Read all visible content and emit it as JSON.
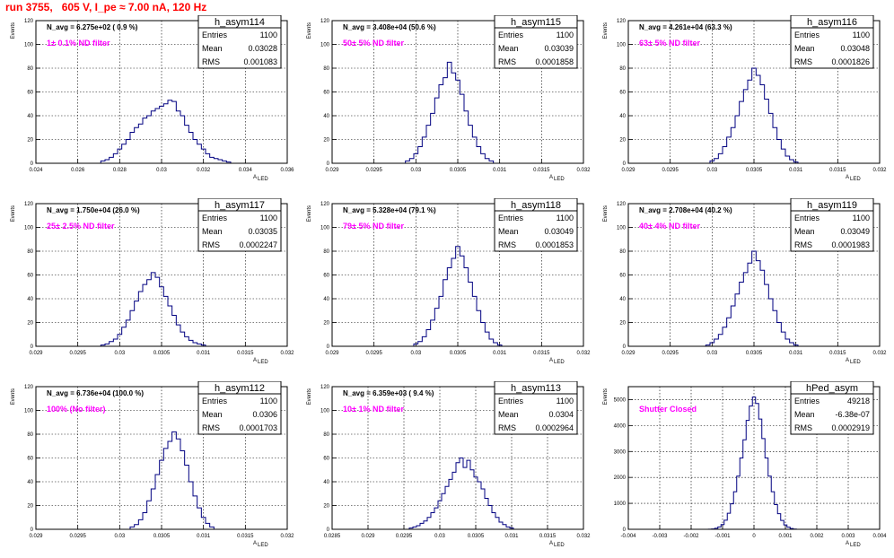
{
  "page_title": "run 3755,   605 V, I_pe ≈ 7.00 nA, 120 Hz",
  "stats_labels": {
    "entries": "Entries",
    "mean": "Mean",
    "rms": "RMS"
  },
  "axis_labels": {
    "y": "Events",
    "x": "A",
    "x_sub": "LED"
  },
  "chart_data": [
    {
      "type": "bar",
      "title": "h_asym114",
      "navg": "N_avg = 6.275e+02 ( 0.9 %)",
      "note": "1± 0.1% ND filter",
      "entries": "1100",
      "mean": "0.03028",
      "rms": "0.001083",
      "xlim": [
        0.024,
        0.036
      ],
      "ylim": [
        0,
        120
      ],
      "xticks": [
        "0.024",
        "0.026",
        "0.028",
        "0.03",
        "0.032",
        "0.034",
        "0.036"
      ],
      "yticks": [
        "0",
        "20",
        "40",
        "60",
        "80",
        "100",
        "120"
      ],
      "x": [
        0.0272,
        0.0274,
        0.0276,
        0.0278,
        0.028,
        0.0282,
        0.0284,
        0.0286,
        0.0288,
        0.029,
        0.0292,
        0.0294,
        0.0296,
        0.0298,
        0.03,
        0.0302,
        0.0304,
        0.0306,
        0.0308,
        0.031,
        0.0312,
        0.0314,
        0.0316,
        0.0318,
        0.032,
        0.0322,
        0.0324,
        0.0326,
        0.0328,
        0.033,
        0.0332
      ],
      "values": [
        2,
        3,
        5,
        8,
        12,
        16,
        20,
        26,
        30,
        33,
        38,
        40,
        44,
        46,
        48,
        50,
        53,
        52,
        44,
        40,
        32,
        26,
        20,
        16,
        12,
        8,
        5,
        4,
        3,
        2,
        1
      ]
    },
    {
      "type": "bar",
      "title": "h_asym115",
      "navg": "N_avg = 3.408e+04 (50.6 %)",
      "note": "50± 5% ND filter",
      "entries": "1100",
      "mean": "0.03039",
      "rms": "0.0001858",
      "xlim": [
        0.029,
        0.032
      ],
      "ylim": [
        0,
        120
      ],
      "xticks": [
        "0.029",
        "0.0295",
        "0.03",
        "0.0305",
        "0.031",
        "0.0315",
        "0.032"
      ],
      "yticks": [
        "0",
        "20",
        "40",
        "60",
        "80",
        "100",
        "120"
      ],
      "x": [
        0.0299,
        0.02995,
        0.03,
        0.03005,
        0.0301,
        0.03015,
        0.0302,
        0.03025,
        0.0303,
        0.03035,
        0.0304,
        0.03045,
        0.0305,
        0.03055,
        0.0306,
        0.03065,
        0.0307,
        0.03075,
        0.0308,
        0.03085,
        0.0309
      ],
      "values": [
        2,
        4,
        8,
        14,
        22,
        32,
        42,
        55,
        66,
        72,
        85,
        76,
        70,
        58,
        44,
        32,
        22,
        14,
        8,
        4,
        2
      ]
    },
    {
      "type": "bar",
      "title": "h_asym116",
      "navg": "N_avg = 4.261e+04 (63.3 %)",
      "note": "63± 5% ND filter",
      "entries": "1100",
      "mean": "0.03048",
      "rms": "0.0001826",
      "xlim": [
        0.029,
        0.032
      ],
      "ylim": [
        0,
        120
      ],
      "xticks": [
        "0.029",
        "0.0295",
        "0.03",
        "0.0305",
        "0.031",
        "0.0315",
        "0.032"
      ],
      "yticks": [
        "0",
        "20",
        "40",
        "60",
        "80",
        "100",
        "120"
      ],
      "x": [
        0.03,
        0.03005,
        0.0301,
        0.03015,
        0.0302,
        0.03025,
        0.0303,
        0.03035,
        0.0304,
        0.03045,
        0.0305,
        0.03055,
        0.0306,
        0.03065,
        0.0307,
        0.03075,
        0.0308,
        0.03085,
        0.0309,
        0.03095,
        0.031
      ],
      "values": [
        2,
        4,
        8,
        14,
        22,
        30,
        40,
        52,
        62,
        70,
        80,
        74,
        66,
        54,
        42,
        30,
        20,
        12,
        6,
        3,
        1
      ]
    },
    {
      "type": "bar",
      "title": "h_asym117",
      "navg": "N_avg = 1.750e+04 (26.0 %)",
      "note": "25± 2.5% ND filter",
      "entries": "1100",
      "mean": "0.03035",
      "rms": "0.0002247",
      "xlim": [
        0.029,
        0.032
      ],
      "ylim": [
        0,
        120
      ],
      "xticks": [
        "0.029",
        "0.0295",
        "0.03",
        "0.0305",
        "0.031",
        "0.0315",
        "0.032"
      ],
      "yticks": [
        "0",
        "20",
        "40",
        "60",
        "80",
        "100",
        "120"
      ],
      "x": [
        0.0298,
        0.02985,
        0.0299,
        0.02995,
        0.03,
        0.03005,
        0.0301,
        0.03015,
        0.0302,
        0.03025,
        0.0303,
        0.03035,
        0.0304,
        0.03045,
        0.0305,
        0.03055,
        0.0306,
        0.03065,
        0.0307,
        0.03075,
        0.0308,
        0.03085,
        0.0309,
        0.03095,
        0.031
      ],
      "values": [
        1,
        2,
        4,
        6,
        10,
        16,
        22,
        30,
        38,
        46,
        52,
        56,
        62,
        58,
        50,
        42,
        34,
        26,
        18,
        12,
        8,
        5,
        3,
        2,
        1
      ]
    },
    {
      "type": "bar",
      "title": "h_asym118",
      "navg": "N_avg = 5.328e+04 (79.1 %)",
      "note": "79± 5% ND filter",
      "entries": "1100",
      "mean": "0.03049",
      "rms": "0.0001853",
      "xlim": [
        0.029,
        0.032
      ],
      "ylim": [
        0,
        120
      ],
      "xticks": [
        "0.029",
        "0.0295",
        "0.03",
        "0.0305",
        "0.031",
        "0.0315",
        "0.032"
      ],
      "yticks": [
        "0",
        "20",
        "40",
        "60",
        "80",
        "100",
        "120"
      ],
      "x": [
        0.03,
        0.03005,
        0.0301,
        0.03015,
        0.0302,
        0.03025,
        0.0303,
        0.03035,
        0.0304,
        0.03045,
        0.0305,
        0.03055,
        0.0306,
        0.03065,
        0.0307,
        0.03075,
        0.0308,
        0.03085,
        0.0309,
        0.03095,
        0.031
      ],
      "values": [
        2,
        4,
        8,
        14,
        22,
        32,
        42,
        56,
        66,
        74,
        84,
        76,
        66,
        54,
        42,
        30,
        20,
        12,
        6,
        3,
        1
      ]
    },
    {
      "type": "bar",
      "title": "h_asym119",
      "navg": "N_avg = 2.708e+04 (40.2 %)",
      "note": "40± 4% ND filter",
      "entries": "1100",
      "mean": "0.03049",
      "rms": "0.0001983",
      "xlim": [
        0.029,
        0.032
      ],
      "ylim": [
        0,
        120
      ],
      "xticks": [
        "0.029",
        "0.0295",
        "0.03",
        "0.0305",
        "0.031",
        "0.0315",
        "0.032"
      ],
      "yticks": [
        "0",
        "20",
        "40",
        "60",
        "80",
        "100",
        "120"
      ],
      "x": [
        0.02995,
        0.03,
        0.03005,
        0.0301,
        0.03015,
        0.0302,
        0.03025,
        0.0303,
        0.03035,
        0.0304,
        0.03045,
        0.0305,
        0.03055,
        0.0306,
        0.03065,
        0.0307,
        0.03075,
        0.0308,
        0.03085,
        0.0309,
        0.03095,
        0.031
      ],
      "values": [
        1,
        3,
        6,
        10,
        16,
        24,
        34,
        44,
        54,
        62,
        70,
        80,
        72,
        64,
        52,
        40,
        30,
        20,
        12,
        6,
        3,
        1
      ]
    },
    {
      "type": "bar",
      "title": "h_asym112",
      "navg": "N_avg = 6.736e+04 (100.0 %)",
      "note": "100% (No filter)",
      "entries": "1100",
      "mean": "0.0306",
      "rms": "0.0001703",
      "xlim": [
        0.029,
        0.032
      ],
      "ylim": [
        0,
        120
      ],
      "xticks": [
        "0.029",
        "0.0295",
        "0.03",
        "0.0305",
        "0.031",
        "0.0315",
        "0.032"
      ],
      "yticks": [
        "0",
        "20",
        "40",
        "60",
        "80",
        "100",
        "120"
      ],
      "x": [
        0.03015,
        0.0302,
        0.03025,
        0.0303,
        0.03035,
        0.0304,
        0.03045,
        0.0305,
        0.03055,
        0.0306,
        0.03065,
        0.0307,
        0.03075,
        0.0308,
        0.03085,
        0.0309,
        0.03095,
        0.031,
        0.03105,
        0.0311
      ],
      "values": [
        2,
        4,
        8,
        14,
        24,
        34,
        46,
        58,
        68,
        74,
        82,
        76,
        66,
        54,
        40,
        28,
        18,
        10,
        5,
        2
      ]
    },
    {
      "type": "bar",
      "title": "h_asym113",
      "navg": "N_avg = 6.359e+03 ( 9.4 %)",
      "note": "10± 1% ND filter",
      "entries": "1100",
      "mean": "0.0304",
      "rms": "0.0002964",
      "xlim": [
        0.0285,
        0.032
      ],
      "ylim": [
        0,
        120
      ],
      "xticks": [
        "0.0285",
        "0.029",
        "0.0295",
        "0.03",
        "0.0305",
        "0.031",
        "0.0315",
        "0.032"
      ],
      "yticks": [
        "0",
        "20",
        "40",
        "60",
        "80",
        "100",
        "120"
      ],
      "x": [
        0.0296,
        0.02965,
        0.0297,
        0.02975,
        0.0298,
        0.02985,
        0.0299,
        0.02995,
        0.03,
        0.03005,
        0.0301,
        0.03015,
        0.0302,
        0.03025,
        0.0303,
        0.03035,
        0.0304,
        0.03045,
        0.0305,
        0.03055,
        0.0306,
        0.03065,
        0.0307,
        0.03075,
        0.0308,
        0.03085,
        0.0309,
        0.03095,
        0.031
      ],
      "values": [
        1,
        2,
        3,
        5,
        7,
        10,
        14,
        18,
        24,
        30,
        36,
        42,
        48,
        56,
        60,
        52,
        58,
        50,
        44,
        40,
        34,
        26,
        20,
        14,
        10,
        6,
        4,
        2,
        1
      ]
    },
    {
      "type": "bar",
      "title": "hPed_asym",
      "navg": "",
      "note": "Shutter Closed",
      "entries": "49218",
      "mean": "-6.38e-07",
      "rms": "0.0002919",
      "xlim": [
        -0.004,
        0.004
      ],
      "ylim": [
        0,
        5500
      ],
      "xticks": [
        "-0.004",
        "-0.003",
        "-0.002",
        "-0.001",
        "0",
        "0.001",
        "0.002",
        "0.003",
        "0.004"
      ],
      "yticks": [
        "0",
        "1000",
        "2000",
        "3000",
        "4000",
        "5000"
      ],
      "x": [
        -0.0014,
        -0.0013,
        -0.0012,
        -0.0011,
        -0.001,
        -0.0009,
        -0.0008,
        -0.0007,
        -0.0006,
        -0.0005,
        -0.0004,
        -0.0003,
        -0.0002,
        -0.0001,
        0.0,
        0.0001,
        0.0002,
        0.0003,
        0.0004,
        0.0005,
        0.0006,
        0.0007,
        0.0008,
        0.0009,
        0.001,
        0.0011,
        0.0012,
        0.0013
      ],
      "values": [
        5,
        15,
        40,
        90,
        180,
        350,
        620,
        980,
        1450,
        2050,
        2750,
        3450,
        4200,
        4750,
        5100,
        4850,
        4250,
        3500,
        2750,
        2050,
        1450,
        950,
        600,
        340,
        170,
        80,
        30,
        10
      ]
    }
  ]
}
